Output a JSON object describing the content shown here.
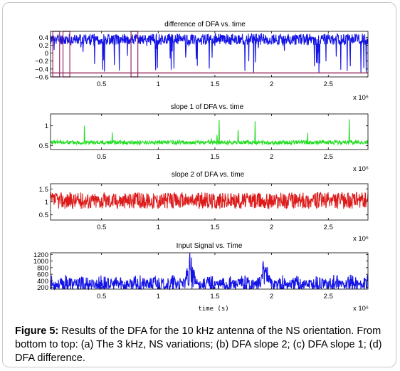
{
  "caption": {
    "label": "Figure 5:",
    "text": " Results of the DFA for the 10 kHz antenna of the NS orientation. From bottom to top: (a) The 3 kHz, NS variations; (b) DFA slope 2; (c) DFA slope 1; (d) DFA difference."
  },
  "chart_data": [
    {
      "type": "line",
      "title": "difference of DFA vs. time",
      "xlabel": "",
      "ylabel": "",
      "x_multiplier": "x 10⁶",
      "xlim": [
        0.05,
        2.85
      ],
      "ylim": [
        -0.6,
        0.55
      ],
      "xticks": [
        0.5,
        1,
        1.5,
        2,
        2.5
      ],
      "xtick_labels": [
        "0.5",
        "1",
        "1.5",
        "2",
        "2.5"
      ],
      "yticks": [
        0.4,
        0.2,
        0,
        -0.2,
        -0.4,
        -0.6
      ],
      "ytick_labels": [
        "0.4",
        "0.2",
        "0",
        "−0.2",
        "−0.4",
        "−0.6"
      ],
      "series": [
        {
          "color": "#1414e6",
          "baseline": 0.35,
          "spread": 0.14,
          "dip_prob": 0.07,
          "dip_min": -0.5,
          "seed": 11
        }
      ],
      "hline": {
        "y": -0.5,
        "color": "#8b1a4a"
      },
      "highlight_boxes": [
        {
          "x0": 0.07,
          "x1": 0.13,
          "y0": -0.6,
          "y1": 0.55,
          "color": "#9b2a6a"
        },
        {
          "x0": 0.16,
          "x1": 0.22,
          "y0": -0.6,
          "y1": 0.55,
          "color": "#9b2a6a"
        },
        {
          "x0": 0.76,
          "x1": 0.82,
          "y0": -0.6,
          "y1": 0.55,
          "color": "#9b2a6a"
        }
      ]
    },
    {
      "type": "line",
      "title": "slope 1 of DFA vs. time",
      "xlabel": "",
      "ylabel": "",
      "x_multiplier": "x 10⁶",
      "xlim": [
        0.05,
        2.85
      ],
      "ylim": [
        0.4,
        1.3
      ],
      "xticks": [
        0.5,
        1,
        1.5,
        2,
        2.5
      ],
      "xtick_labels": [
        "0.5",
        "1",
        "1.5",
        "2",
        "2.5"
      ],
      "yticks": [
        1,
        0.5
      ],
      "ytick_labels": [
        "1",
        "0.5"
      ],
      "series": [
        {
          "color": "#22dd22",
          "baseline": 0.58,
          "spread": 0.05,
          "spike_prob": 0.012,
          "spike_max": 1.2,
          "seed": 23
        }
      ]
    },
    {
      "type": "line",
      "title": "slope 2 of DFA vs. time",
      "xlabel": "",
      "ylabel": "",
      "x_multiplier": "x 10⁶",
      "xlim": [
        0.05,
        2.85
      ],
      "ylim": [
        0.3,
        1.7
      ],
      "xticks": [
        0.5,
        1,
        1.5,
        2,
        2.5
      ],
      "xtick_labels": [
        "0.5",
        "1",
        "1.5",
        "2",
        "2.5"
      ],
      "yticks": [
        1.5,
        1,
        0.5
      ],
      "ytick_labels": [
        "1.5",
        "1",
        "0.5"
      ],
      "series": [
        {
          "color": "#dd1a1a",
          "baseline": 1.05,
          "spread": 0.32,
          "seed": 37
        }
      ]
    },
    {
      "type": "line",
      "title": "Input Signal vs. Time",
      "xlabel": "time (s)",
      "ylabel": "",
      "x_multiplier": "x 10⁶",
      "xlim": [
        0.05,
        2.85
      ],
      "ylim": [
        150,
        1250
      ],
      "xticks": [
        0.5,
        1,
        1.5,
        2,
        2.5
      ],
      "xtick_labels": [
        "0.5",
        "1",
        "1.5",
        "2",
        "2.5"
      ],
      "yticks": [
        1200,
        1000,
        800,
        600,
        400,
        200
      ],
      "ytick_labels": [
        "1200",
        "1000",
        "800",
        "600",
        "400",
        "200"
      ],
      "series": [
        {
          "color": "#1414e6",
          "baseline": 300,
          "spread": 250,
          "burst_at": [
            1.28,
            1.95
          ],
          "burst_max": 1080,
          "seed": 53
        }
      ]
    }
  ]
}
